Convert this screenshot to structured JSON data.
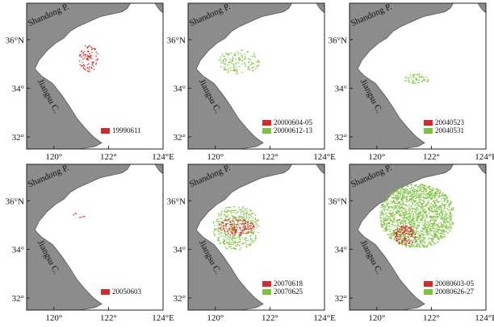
{
  "axes": {
    "y_ticks": [
      "36°N",
      "34°",
      "32°"
    ],
    "x_ticks": [
      "120°",
      "122°",
      "124°E"
    ]
  },
  "places": {
    "peninsula": "Shandong P.",
    "coast": "Jiangsu C."
  },
  "colors": {
    "land": "#8c8c8c",
    "sea": "#ffffff",
    "red": "#d22b2b",
    "green": "#7fc241"
  },
  "panels": [
    {
      "id": "p1",
      "legend": [
        {
          "label": "19990611",
          "color": "red"
        }
      ],
      "patches": [
        {
          "color": "red",
          "lon": [
            120.9,
            121.6
          ],
          "lat": [
            34.7,
            35.8
          ],
          "density": 0.45
        }
      ]
    },
    {
      "id": "p2",
      "legend": [
        {
          "label": "20000604-05",
          "color": "red"
        },
        {
          "label": "20000612-13",
          "color": "green"
        }
      ],
      "patches": [
        {
          "color": "green",
          "lon": [
            120.1,
            121.6
          ],
          "lat": [
            34.6,
            35.6
          ],
          "density": 0.35
        }
      ]
    },
    {
      "id": "p3",
      "legend": [
        {
          "label": "20040523",
          "color": "red"
        },
        {
          "label": "20040531",
          "color": "green"
        }
      ],
      "patches": [
        {
          "color": "green",
          "lon": [
            121.0,
            121.9
          ],
          "lat": [
            34.2,
            34.6
          ],
          "density": 0.55
        }
      ]
    },
    {
      "id": "p4",
      "legend": [
        {
          "label": "20050603",
          "color": "red"
        }
      ],
      "patches": [
        {
          "color": "red",
          "lon": [
            120.6,
            121.2
          ],
          "lat": [
            35.3,
            35.6
          ],
          "density": 0.15
        }
      ]
    },
    {
      "id": "p5",
      "legend": [
        {
          "label": "20070618",
          "color": "red"
        },
        {
          "label": "20070625",
          "color": "green"
        }
      ],
      "patches": [
        {
          "color": "green",
          "lon": [
            119.9,
            121.6
          ],
          "lat": [
            34.0,
            35.8
          ],
          "density": 0.5
        },
        {
          "color": "red",
          "lon": [
            120.1,
            121.4
          ],
          "lat": [
            34.6,
            35.3
          ],
          "density": 0.55
        }
      ]
    },
    {
      "id": "p6",
      "legend": [
        {
          "label": "20080603-05",
          "color": "red"
        },
        {
          "label": "20080626-27",
          "color": "green"
        }
      ],
      "patches": [
        {
          "color": "green",
          "lon": [
            120.1,
            122.8
          ],
          "lat": [
            34.1,
            36.7
          ],
          "density": 0.9
        },
        {
          "color": "red",
          "lon": [
            120.6,
            121.4
          ],
          "lat": [
            34.2,
            35.0
          ],
          "density": 0.7
        }
      ]
    }
  ]
}
